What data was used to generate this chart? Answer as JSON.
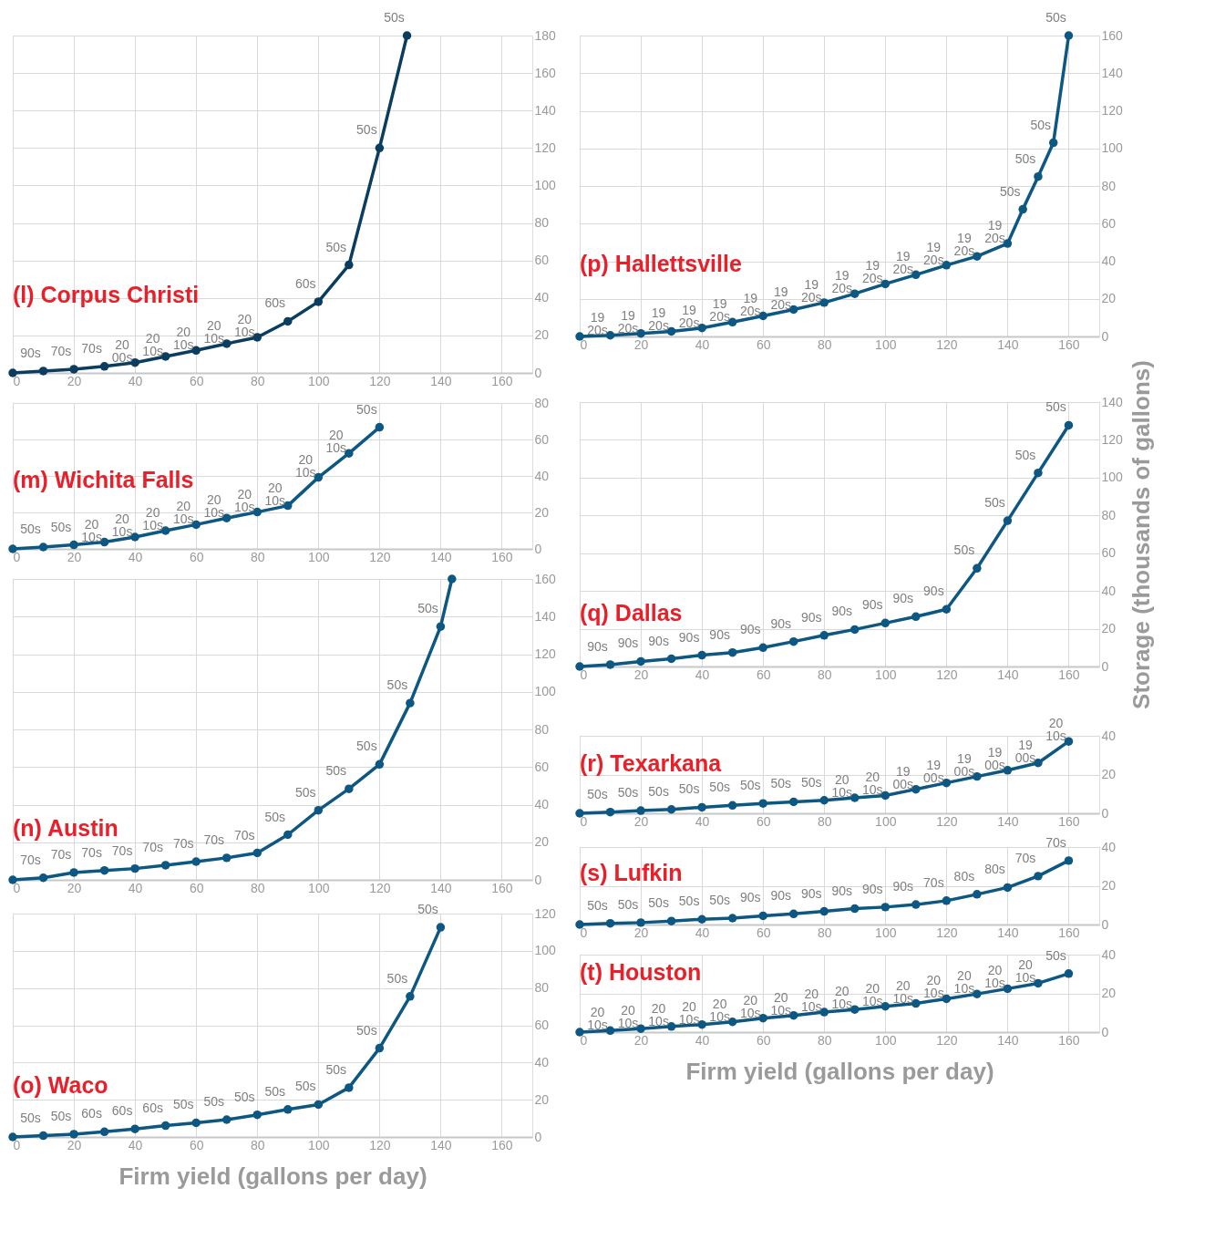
{
  "chart_data": [
    {
      "type": "line",
      "title": "(l) Corpus Christi",
      "color": "#0a3d5e",
      "marker": "circle",
      "grid": true,
      "xlim": [
        0,
        170
      ],
      "xticks": [
        0,
        20,
        40,
        60,
        80,
        100,
        120,
        140,
        160
      ],
      "ylim": [
        0,
        180
      ],
      "yticks": [
        0,
        20,
        40,
        60,
        80,
        100,
        120,
        140,
        160,
        180
      ],
      "x": [
        0,
        10,
        20,
        30,
        40,
        50,
        60,
        70,
        80,
        90,
        100,
        110,
        120,
        129
      ],
      "values": [
        0,
        1,
        2,
        3.5,
        5.5,
        8.8,
        12,
        15.6,
        19,
        27.5,
        38,
        57.6,
        120,
        180
      ],
      "annotations": [
        {
          "text": "90s",
          "x": 10,
          "y": 1
        },
        {
          "text": "70s",
          "x": 20,
          "y": 2
        },
        {
          "text": "70s",
          "x": 30,
          "y": 3.5
        },
        {
          "text": "20\n00s",
          "x": 40,
          "y": 5.5
        },
        {
          "text": "20\n10s",
          "x": 50,
          "y": 8.8
        },
        {
          "text": "20\n10s",
          "x": 60,
          "y": 12
        },
        {
          "text": "20\n10s",
          "x": 70,
          "y": 15.6
        },
        {
          "text": "20\n10s",
          "x": 80,
          "y": 19
        },
        {
          "text": "60s",
          "x": 90,
          "y": 27.5
        },
        {
          "text": "60s",
          "x": 100,
          "y": 38
        },
        {
          "text": "50s",
          "x": 110,
          "y": 57.6
        },
        {
          "text": "50s",
          "x": 120,
          "y": 120
        },
        {
          "text": "50s",
          "x": 129,
          "y": 180
        }
      ]
    },
    {
      "type": "line",
      "title": "(m) Wichita Falls",
      "color": "#0d5783",
      "marker": "circle",
      "grid": true,
      "xlim": [
        0,
        170
      ],
      "xticks": [
        0,
        20,
        40,
        60,
        80,
        100,
        120,
        140,
        160
      ],
      "ylim": [
        0,
        80
      ],
      "yticks": [
        0,
        20,
        40,
        60,
        80
      ],
      "x": [
        0,
        10,
        20,
        30,
        40,
        50,
        60,
        70,
        80,
        90,
        100,
        110,
        120
      ],
      "values": [
        0,
        1,
        2.2,
        3.7,
        6.5,
        10,
        13.3,
        16.9,
        20.2,
        23.7,
        39.2,
        52.4,
        66.7
      ],
      "annotations": [
        {
          "text": "50s",
          "x": 10,
          "y": 1
        },
        {
          "text": "50s",
          "x": 20,
          "y": 2.2
        },
        {
          "text": "20\n10s",
          "x": 30,
          "y": 3.7
        },
        {
          "text": "20\n10s",
          "x": 40,
          "y": 6.5
        },
        {
          "text": "20\n10s",
          "x": 50,
          "y": 10
        },
        {
          "text": "20\n10s",
          "x": 60,
          "y": 13.3
        },
        {
          "text": "20\n10s",
          "x": 70,
          "y": 16.9
        },
        {
          "text": "20\n10s",
          "x": 80,
          "y": 20.2
        },
        {
          "text": "20\n10s",
          "x": 90,
          "y": 23.7
        },
        {
          "text": "20\n10s",
          "x": 100,
          "y": 39.2
        },
        {
          "text": "20\n10s",
          "x": 110,
          "y": 52.4
        },
        {
          "text": "50s",
          "x": 120,
          "y": 66.7
        }
      ]
    },
    {
      "type": "line",
      "title": "(n) Austin",
      "color": "#0d5783",
      "marker": "circle",
      "grid": true,
      "xlim": [
        0,
        170
      ],
      "xticks": [
        0,
        20,
        40,
        60,
        80,
        100,
        120,
        140,
        160
      ],
      "ylim": [
        0,
        160
      ],
      "yticks": [
        0,
        20,
        40,
        60,
        80,
        100,
        120,
        140,
        160
      ],
      "x": [
        0,
        10,
        20,
        30,
        40,
        50,
        60,
        70,
        80,
        90,
        100,
        110,
        120,
        130,
        140,
        143.7
      ],
      "values": [
        0,
        1.1,
        3.9,
        5,
        6,
        7.8,
        9.7,
        11.7,
        14.3,
        24,
        37,
        48.4,
        61.4,
        94,
        134.7,
        160
      ],
      "annotations": [
        {
          "text": "70s",
          "x": 10,
          "y": 1.1
        },
        {
          "text": "70s",
          "x": 20,
          "y": 3.9
        },
        {
          "text": "70s",
          "x": 30,
          "y": 5
        },
        {
          "text": "70s",
          "x": 40,
          "y": 6
        },
        {
          "text": "70s",
          "x": 50,
          "y": 7.8
        },
        {
          "text": "70s",
          "x": 60,
          "y": 9.7
        },
        {
          "text": "70s",
          "x": 70,
          "y": 11.7
        },
        {
          "text": "70s",
          "x": 80,
          "y": 14.3
        },
        {
          "text": "50s",
          "x": 90,
          "y": 24
        },
        {
          "text": "50s",
          "x": 100,
          "y": 37
        },
        {
          "text": "50s",
          "x": 110,
          "y": 48.4
        },
        {
          "text": "50s",
          "x": 120,
          "y": 61.4
        },
        {
          "text": "50s",
          "x": 130,
          "y": 94
        },
        {
          "text": "50s",
          "x": 140,
          "y": 134.7
        }
      ]
    },
    {
      "type": "line",
      "title": "(o) Waco",
      "xlabel": "Firm yield (gallons per day)",
      "color": "#0d5783",
      "marker": "circle",
      "grid": true,
      "xlim": [
        0,
        170
      ],
      "xticks": [
        0,
        20,
        40,
        60,
        80,
        100,
        120,
        140,
        160
      ],
      "ylim": [
        0,
        120
      ],
      "yticks": [
        0,
        20,
        40,
        60,
        80,
        100,
        120
      ],
      "x": [
        0,
        10,
        20,
        30,
        40,
        50,
        60,
        70,
        80,
        90,
        100,
        110,
        120,
        130,
        140
      ],
      "values": [
        0,
        0.7,
        1.5,
        2.8,
        4.3,
        6.1,
        7.6,
        9.3,
        11.9,
        14.8,
        17.4,
        26.5,
        47.7,
        75.5,
        112.6
      ],
      "annotations": [
        {
          "text": "50s",
          "x": 10,
          "y": 0.7
        },
        {
          "text": "50s",
          "x": 20,
          "y": 1.5
        },
        {
          "text": "60s",
          "x": 30,
          "y": 2.8
        },
        {
          "text": "60s",
          "x": 40,
          "y": 4.3
        },
        {
          "text": "60s",
          "x": 50,
          "y": 6.1
        },
        {
          "text": "50s",
          "x": 60,
          "y": 7.6
        },
        {
          "text": "50s",
          "x": 70,
          "y": 9.3
        },
        {
          "text": "50s",
          "x": 80,
          "y": 11.9
        },
        {
          "text": "50s",
          "x": 90,
          "y": 14.8
        },
        {
          "text": "50s",
          "x": 100,
          "y": 17.4
        },
        {
          "text": "50s",
          "x": 110,
          "y": 26.5
        },
        {
          "text": "50s",
          "x": 120,
          "y": 47.7
        },
        {
          "text": "50s",
          "x": 130,
          "y": 75.5
        },
        {
          "text": "50s",
          "x": 140,
          "y": 112.6
        }
      ]
    },
    {
      "type": "line",
      "title": "(p) Hallettsville",
      "color": "#0d5783",
      "marker": "circle",
      "grid": true,
      "xlim": [
        0,
        170
      ],
      "xticks": [
        0,
        20,
        40,
        60,
        80,
        100,
        120,
        140,
        160
      ],
      "ylim": [
        0,
        160
      ],
      "yticks": [
        0,
        20,
        40,
        60,
        80,
        100,
        120,
        140,
        160
      ],
      "x": [
        0,
        10,
        20,
        30,
        40,
        50,
        60,
        70,
        80,
        90,
        100,
        110,
        120,
        130,
        140,
        145,
        150,
        155,
        160
      ],
      "values": [
        0,
        0.6,
        1.6,
        2.7,
        4.5,
        7.6,
        10.9,
        14.3,
        18,
        22.7,
        27.9,
        32.8,
        37.9,
        42.6,
        49.4,
        67.6,
        85,
        103,
        160
      ],
      "annotations": [
        {
          "text": "19\n20s",
          "x": 10,
          "y": 0.6
        },
        {
          "text": "19\n20s",
          "x": 20,
          "y": 1.6
        },
        {
          "text": "19\n20s",
          "x": 30,
          "y": 2.7
        },
        {
          "text": "19\n20s",
          "x": 40,
          "y": 4.5
        },
        {
          "text": "19\n20s",
          "x": 50,
          "y": 7.6
        },
        {
          "text": "19\n20s",
          "x": 60,
          "y": 10.9
        },
        {
          "text": "19\n20s",
          "x": 70,
          "y": 14.3
        },
        {
          "text": "19\n20s",
          "x": 80,
          "y": 18
        },
        {
          "text": "19\n20s",
          "x": 90,
          "y": 22.7
        },
        {
          "text": "19\n20s",
          "x": 100,
          "y": 27.9
        },
        {
          "text": "19\n20s",
          "x": 110,
          "y": 32.8
        },
        {
          "text": "19\n20s",
          "x": 120,
          "y": 37.9
        },
        {
          "text": "19\n20s",
          "x": 130,
          "y": 42.6
        },
        {
          "text": "19\n20s",
          "x": 140,
          "y": 49.4
        },
        {
          "text": "50s",
          "x": 145,
          "y": 67.6
        },
        {
          "text": "50s",
          "x": 150,
          "y": 85
        },
        {
          "text": "50s",
          "x": 155,
          "y": 103
        },
        {
          "text": "50s",
          "x": 160,
          "y": 160
        }
      ]
    },
    {
      "type": "line",
      "title": "(q) Dallas",
      "ylabel": "Storage (thousands of gallons)",
      "color": "#0d5783",
      "marker": "circle",
      "grid": true,
      "xlim": [
        0,
        170
      ],
      "xticks": [
        0,
        20,
        40,
        60,
        80,
        100,
        120,
        140,
        160
      ],
      "ylim": [
        0,
        140
      ],
      "yticks": [
        0,
        20,
        40,
        60,
        80,
        100,
        120,
        140
      ],
      "x": [
        0,
        10,
        20,
        30,
        40,
        50,
        60,
        70,
        80,
        90,
        100,
        110,
        120,
        130,
        140,
        150,
        160
      ],
      "values": [
        0,
        1,
        2.7,
        4.1,
        6,
        7.4,
        10,
        13.2,
        16.5,
        19.6,
        23,
        26.4,
        30.3,
        52,
        77.2,
        102.5,
        127.7
      ],
      "annotations": [
        {
          "text": "90s",
          "x": 10,
          "y": 1
        },
        {
          "text": "90s",
          "x": 20,
          "y": 2.7
        },
        {
          "text": "90s",
          "x": 30,
          "y": 4.1
        },
        {
          "text": "90s",
          "x": 40,
          "y": 6
        },
        {
          "text": "90s",
          "x": 50,
          "y": 7.4
        },
        {
          "text": "90s",
          "x": 60,
          "y": 10
        },
        {
          "text": "90s",
          "x": 70,
          "y": 13.2
        },
        {
          "text": "90s",
          "x": 80,
          "y": 16.5
        },
        {
          "text": "90s",
          "x": 90,
          "y": 19.6
        },
        {
          "text": "90s",
          "x": 100,
          "y": 23
        },
        {
          "text": "90s",
          "x": 110,
          "y": 26.4
        },
        {
          "text": "90s",
          "x": 120,
          "y": 30.3
        },
        {
          "text": "50s",
          "x": 130,
          "y": 52
        },
        {
          "text": "50s",
          "x": 140,
          "y": 77.2
        },
        {
          "text": "50s",
          "x": 150,
          "y": 102.5
        },
        {
          "text": "50s",
          "x": 160,
          "y": 127.7
        }
      ]
    },
    {
      "type": "line",
      "title": "(r) Texarkana",
      "color": "#0d5783",
      "marker": "circle",
      "grid": true,
      "xlim": [
        0,
        170
      ],
      "xticks": [
        0,
        20,
        40,
        60,
        80,
        100,
        120,
        140,
        160
      ],
      "ylim": [
        0,
        40
      ],
      "yticks": [
        0,
        20,
        40
      ],
      "x": [
        0,
        10,
        20,
        30,
        40,
        50,
        60,
        70,
        80,
        90,
        100,
        110,
        120,
        130,
        140,
        150,
        160
      ],
      "values": [
        0,
        0.6,
        1.4,
        2,
        3.1,
        4.1,
        5.1,
        5.9,
        6.7,
        8,
        9.2,
        12.4,
        15.7,
        19,
        22.2,
        26,
        37.1
      ],
      "annotations": [
        {
          "text": "50s",
          "x": 10,
          "y": 0.6
        },
        {
          "text": "50s",
          "x": 20,
          "y": 1.4
        },
        {
          "text": "50s",
          "x": 30,
          "y": 2
        },
        {
          "text": "50s",
          "x": 40,
          "y": 3.1
        },
        {
          "text": "50s",
          "x": 50,
          "y": 4.1
        },
        {
          "text": "50s",
          "x": 60,
          "y": 5.1
        },
        {
          "text": "50s",
          "x": 70,
          "y": 5.9
        },
        {
          "text": "50s",
          "x": 80,
          "y": 6.7
        },
        {
          "text": "20\n10s",
          "x": 90,
          "y": 8
        },
        {
          "text": "20\n10s",
          "x": 100,
          "y": 9.2
        },
        {
          "text": "19\n00s",
          "x": 110,
          "y": 12.4
        },
        {
          "text": "19\n00s",
          "x": 120,
          "y": 15.7
        },
        {
          "text": "19\n00s",
          "x": 130,
          "y": 19
        },
        {
          "text": "19\n00s",
          "x": 140,
          "y": 22.2
        },
        {
          "text": "19\n00s",
          "x": 150,
          "y": 26
        },
        {
          "text": "20\n10s",
          "x": 160,
          "y": 37.1
        }
      ]
    },
    {
      "type": "line",
      "title": "(s) Lufkin",
      "color": "#0d5783",
      "marker": "circle",
      "grid": true,
      "xlim": [
        0,
        170
      ],
      "xticks": [
        0,
        20,
        40,
        60,
        80,
        100,
        120,
        140,
        160
      ],
      "ylim": [
        0,
        40
      ],
      "yticks": [
        0,
        20,
        40
      ],
      "x": [
        0,
        10,
        20,
        30,
        40,
        50,
        60,
        70,
        80,
        90,
        100,
        110,
        120,
        130,
        140,
        150,
        160
      ],
      "values": [
        0,
        0.6,
        1,
        1.8,
        2.7,
        3.3,
        4.5,
        5.5,
        6.8,
        8.2,
        9,
        10.3,
        12.3,
        15.6,
        19.1,
        25,
        33
      ],
      "annotations": [
        {
          "text": "50s",
          "x": 10,
          "y": 0.6
        },
        {
          "text": "50s",
          "x": 20,
          "y": 1
        },
        {
          "text": "50s",
          "x": 30,
          "y": 1.8
        },
        {
          "text": "50s",
          "x": 40,
          "y": 2.7
        },
        {
          "text": "50s",
          "x": 50,
          "y": 3.3
        },
        {
          "text": "90s",
          "x": 60,
          "y": 4.5
        },
        {
          "text": "90s",
          "x": 70,
          "y": 5.5
        },
        {
          "text": "90s",
          "x": 80,
          "y": 6.8
        },
        {
          "text": "90s",
          "x": 90,
          "y": 8.2
        },
        {
          "text": "90s",
          "x": 100,
          "y": 9
        },
        {
          "text": "90s",
          "x": 110,
          "y": 10.3
        },
        {
          "text": "70s",
          "x": 120,
          "y": 12.3
        },
        {
          "text": "80s",
          "x": 130,
          "y": 15.6
        },
        {
          "text": "80s",
          "x": 140,
          "y": 19.1
        },
        {
          "text": "70s",
          "x": 150,
          "y": 25
        },
        {
          "text": "70s",
          "x": 160,
          "y": 33
        }
      ]
    },
    {
      "type": "line",
      "title": "(t) Houston",
      "xlabel": "Firm yield (gallons per day)",
      "color": "#0d5783",
      "marker": "circle",
      "grid": true,
      "xlim": [
        0,
        170
      ],
      "xticks": [
        0,
        20,
        40,
        60,
        80,
        100,
        120,
        140,
        160
      ],
      "ylim": [
        0,
        40
      ],
      "yticks": [
        0,
        20,
        40
      ],
      "x": [
        0,
        10,
        20,
        30,
        40,
        50,
        60,
        70,
        80,
        90,
        100,
        110,
        120,
        130,
        140,
        150,
        160
      ],
      "values": [
        0,
        0.8,
        1.8,
        2.9,
        3.9,
        5.3,
        7.2,
        8.6,
        10.3,
        11.7,
        13.3,
        14.8,
        17.2,
        19.7,
        22.4,
        25.2,
        30.2
      ],
      "annotations": [
        {
          "text": "20\n10s",
          "x": 10,
          "y": 0.8
        },
        {
          "text": "20\n10s",
          "x": 20,
          "y": 1.8
        },
        {
          "text": "20\n10s",
          "x": 30,
          "y": 2.9
        },
        {
          "text": "20\n10s",
          "x": 40,
          "y": 3.9
        },
        {
          "text": "20\n10s",
          "x": 50,
          "y": 5.3
        },
        {
          "text": "20\n10s",
          "x": 60,
          "y": 7.2
        },
        {
          "text": "20\n10s",
          "x": 70,
          "y": 8.6
        },
        {
          "text": "20\n10s",
          "x": 80,
          "y": 10.3
        },
        {
          "text": "20\n10s",
          "x": 90,
          "y": 11.7
        },
        {
          "text": "20\n10s",
          "x": 100,
          "y": 13.3
        },
        {
          "text": "20\n10s",
          "x": 110,
          "y": 14.8
        },
        {
          "text": "20\n10s",
          "x": 120,
          "y": 17.2
        },
        {
          "text": "20\n10s",
          "x": 130,
          "y": 19.7
        },
        {
          "text": "20\n10s",
          "x": 140,
          "y": 22.4
        },
        {
          "text": "20\n10s",
          "x": 150,
          "y": 25.2
        },
        {
          "text": "50s",
          "x": 160,
          "y": 30.2
        }
      ]
    }
  ]
}
